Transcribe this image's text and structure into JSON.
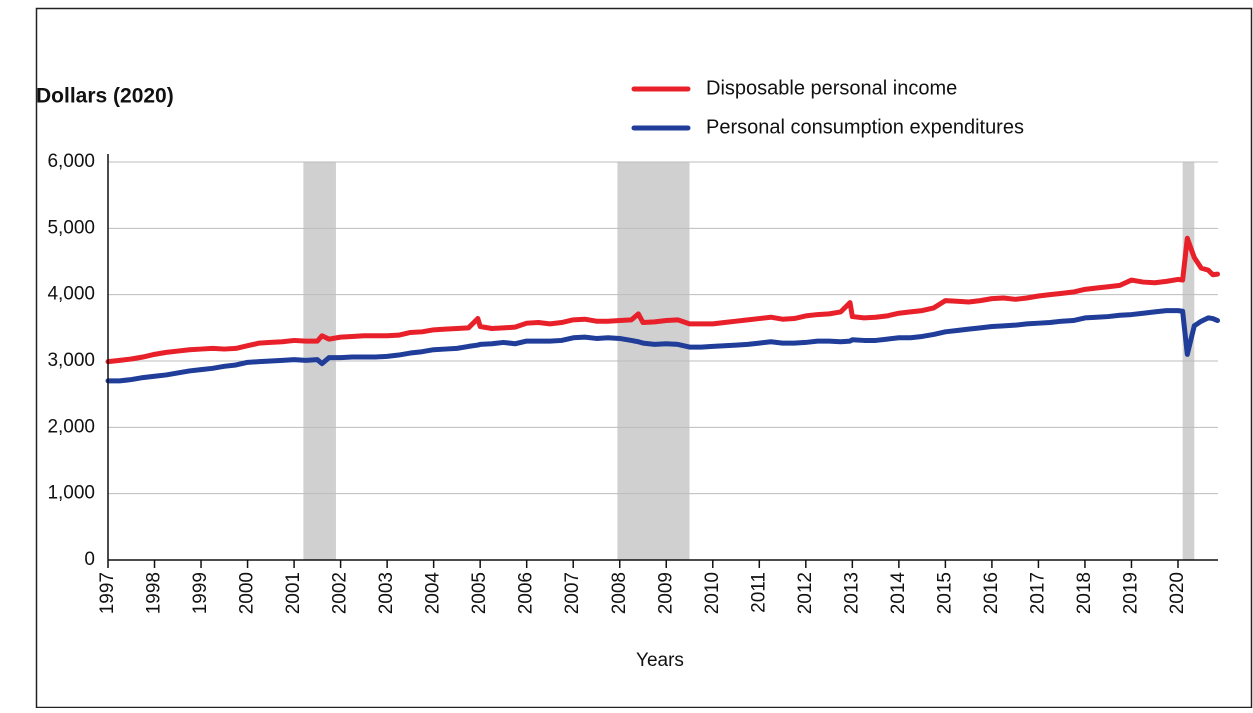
{
  "chart_data": {
    "type": "line",
    "title": "Dollars (2020)",
    "x_label": "Years",
    "xlim": [
      1997,
      2020.86
    ],
    "xticks": [
      1997,
      1998,
      1999,
      2000,
      2001,
      2002,
      2003,
      2004,
      2005,
      2006,
      2007,
      2008,
      2009,
      2010,
      2011,
      2012,
      2013,
      2014,
      2015,
      2016,
      2017,
      2018,
      2019,
      2020
    ],
    "ylim": [
      0,
      6000
    ],
    "yticks": [
      0,
      {
        "value": 1000,
        "label": "1,000"
      },
      {
        "value": 2000,
        "label": "2,000"
      },
      {
        "value": 3000,
        "label": "3,000"
      },
      {
        "value": 4000,
        "label": "4,000"
      },
      {
        "value": 5000,
        "label": "5,000"
      },
      {
        "value": 6000,
        "label": "6,000"
      }
    ],
    "grid": true,
    "recessions": [
      [
        2001.2,
        2001.9
      ],
      [
        2007.95,
        2009.5
      ],
      [
        2020.1,
        2020.35
      ]
    ],
    "recession_color": "#d0d0d0",
    "x": [
      1997,
      1997.25,
      1997.5,
      1997.75,
      1998,
      1998.25,
      1998.5,
      1998.75,
      1999,
      1999.25,
      1999.5,
      1999.75,
      2000,
      2000.25,
      2000.5,
      2000.75,
      2001,
      2001.25,
      2001.5,
      2001.6,
      2001.75,
      2002,
      2002.25,
      2002.5,
      2002.75,
      2003,
      2003.25,
      2003.5,
      2003.75,
      2004,
      2004.25,
      2004.5,
      2004.75,
      2004.95,
      2005,
      2005.25,
      2005.5,
      2005.75,
      2006,
      2006.25,
      2006.5,
      2006.75,
      2007,
      2007.25,
      2007.5,
      2007.75,
      2008,
      2008.25,
      2008.4,
      2008.5,
      2008.75,
      2009,
      2009.25,
      2009.5,
      2009.75,
      2010,
      2010.25,
      2010.5,
      2010.75,
      2011,
      2011.25,
      2011.5,
      2011.75,
      2012,
      2012.25,
      2012.5,
      2012.75,
      2012.95,
      2013,
      2013.25,
      2013.5,
      2013.75,
      2014,
      2014.25,
      2014.5,
      2014.75,
      2015,
      2015.25,
      2015.5,
      2015.75,
      2016,
      2016.25,
      2016.5,
      2016.75,
      2017,
      2017.25,
      2017.5,
      2017.75,
      2018,
      2018.25,
      2018.5,
      2018.75,
      2019,
      2019.25,
      2019.5,
      2019.75,
      2020,
      2020.1,
      2020.2,
      2020.35,
      2020.5,
      2020.65,
      2020.75,
      2020.85
    ],
    "series": [
      {
        "name": "Disposable personal income",
        "color": "#e8202a",
        "values": [
          2990,
          3010,
          3030,
          3060,
          3100,
          3130,
          3150,
          3170,
          3180,
          3190,
          3180,
          3190,
          3230,
          3270,
          3280,
          3290,
          3310,
          3300,
          3300,
          3380,
          3330,
          3360,
          3370,
          3380,
          3380,
          3380,
          3390,
          3430,
          3440,
          3470,
          3480,
          3490,
          3500,
          3640,
          3520,
          3490,
          3500,
          3510,
          3570,
          3580,
          3560,
          3580,
          3620,
          3630,
          3600,
          3600,
          3610,
          3620,
          3710,
          3580,
          3590,
          3610,
          3620,
          3560,
          3560,
          3560,
          3580,
          3600,
          3620,
          3640,
          3660,
          3630,
          3640,
          3680,
          3700,
          3710,
          3740,
          3880,
          3670,
          3650,
          3660,
          3680,
          3720,
          3740,
          3760,
          3800,
          3910,
          3900,
          3890,
          3910,
          3940,
          3950,
          3930,
          3950,
          3980,
          4000,
          4020,
          4040,
          4080,
          4100,
          4120,
          4140,
          4220,
          4190,
          4180,
          4200,
          4230,
          4220,
          4850,
          4560,
          4400,
          4370,
          4300,
          4310
        ]
      },
      {
        "name": "Personal consumption expenditures",
        "color": "#1f3d99",
        "values": [
          2700,
          2700,
          2720,
          2750,
          2770,
          2790,
          2820,
          2850,
          2870,
          2890,
          2920,
          2940,
          2980,
          2990,
          3000,
          3010,
          3020,
          3010,
          3020,
          2960,
          3050,
          3050,
          3060,
          3060,
          3060,
          3070,
          3090,
          3120,
          3140,
          3170,
          3180,
          3190,
          3220,
          3240,
          3250,
          3260,
          3280,
          3260,
          3300,
          3300,
          3300,
          3310,
          3350,
          3360,
          3340,
          3350,
          3340,
          3310,
          3290,
          3270,
          3250,
          3260,
          3250,
          3210,
          3210,
          3220,
          3230,
          3240,
          3250,
          3270,
          3290,
          3270,
          3270,
          3280,
          3300,
          3300,
          3290,
          3300,
          3320,
          3310,
          3310,
          3330,
          3350,
          3350,
          3370,
          3400,
          3440,
          3460,
          3480,
          3500,
          3520,
          3530,
          3540,
          3560,
          3570,
          3580,
          3600,
          3610,
          3650,
          3660,
          3670,
          3690,
          3700,
          3720,
          3740,
          3760,
          3760,
          3750,
          3100,
          3530,
          3600,
          3650,
          3640,
          3610
        ]
      }
    ]
  }
}
